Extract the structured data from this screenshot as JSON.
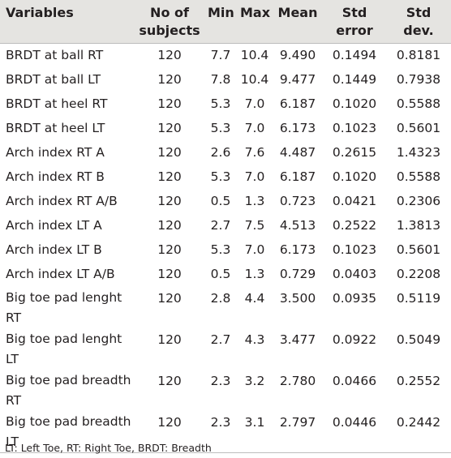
{
  "table": {
    "headers": [
      "Variables",
      "No of subjects",
      "Min",
      "Max",
      "Mean",
      "Std error",
      "Std dev."
    ],
    "rows": [
      [
        "BRDT at ball RT",
        "120",
        "7.7",
        "10.4",
        "9.490",
        "0.1494",
        "0.8181"
      ],
      [
        "BRDT at ball LT",
        "120",
        "7.8",
        "10.4",
        "9.477",
        "0.1449",
        "0.7938"
      ],
      [
        "BRDT at heel RT",
        "120",
        "5.3",
        "7.0",
        "6.187",
        "0.1020",
        "0.5588"
      ],
      [
        "BRDT at heel LT",
        "120",
        "5.3",
        "7.0",
        "6.173",
        "0.1023",
        "0.5601"
      ],
      [
        "Arch index RT A",
        "120",
        "2.6",
        "7.6",
        "4.487",
        "0.2615",
        "1.4323"
      ],
      [
        "Arch index RT B",
        "120",
        "5.3",
        "7.0",
        "6.187",
        "0.1020",
        "0.5588"
      ],
      [
        "Arch index RT A/B",
        "120",
        "0.5",
        "1.3",
        "0.723",
        "0.0421",
        "0.2306"
      ],
      [
        "Arch index LT A",
        "120",
        "2.7",
        "7.5",
        "4.513",
        "0.2522",
        "1.3813"
      ],
      [
        "Arch index LT B",
        "120",
        "5.3",
        "7.0",
        "6.173",
        "0.1023",
        "0.5601"
      ],
      [
        "Arch index LT A/B",
        "120",
        "0.5",
        "1.3",
        "0.729",
        "0.0403",
        "0.2208"
      ],
      [
        "Big toe pad lenght RT",
        "120",
        "2.8",
        "4.4",
        "3.500",
        "0.0935",
        "0.5119"
      ],
      [
        "Big toe pad lenght LT",
        "120",
        "2.7",
        "4.3",
        "3.477",
        "0.0922",
        "0.5049"
      ],
      [
        "Big toe pad breadth RT",
        "120",
        "2.3",
        "3.2",
        "2.780",
        "0.0466",
        "0.2552"
      ],
      [
        "Big toe pad breadth LT",
        "120",
        "2.3",
        "3.1",
        "2.797",
        "0.0446",
        "0.2442"
      ]
    ]
  },
  "footnote": "LT: Left Toe, RT: Right Toe, BRDT: Breadth"
}
